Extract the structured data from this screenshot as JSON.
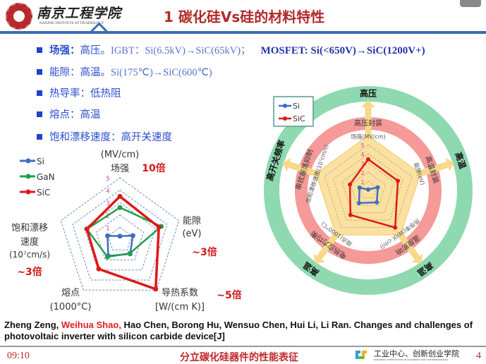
{
  "header": {
    "logo_text": "南京工程学院",
    "logo_subtitle": "NANJING INSTITUTE OF TECHNOLOGY",
    "title": "1 碳化硅Vs硅的材料特性"
  },
  "bullets": [
    {
      "key": "场强：",
      "text": "高压。",
      "detail": "IGBT：Si(6.5kV)→SiC(65kV)；",
      "extra": "MOSFET: Si(<650V)→SiC(1200V+)"
    },
    {
      "key": "能隙：",
      "text": "高温。",
      "detail": "Si(175℃)→SiC(600℃)",
      "extra": ""
    },
    {
      "key": "热导率：",
      "text": "低热阻",
      "detail": "",
      "extra": ""
    },
    {
      "key": "熔点：",
      "text": "高温",
      "detail": "",
      "extra": ""
    },
    {
      "key": "饱和漂移速度：",
      "text": "高开关速度",
      "detail": "",
      "extra": ""
    }
  ],
  "colors": {
    "Si": "#3d6fbf",
    "GaN": "#1fa04a",
    "SiC": "#e01818",
    "accent": "#b22a2a",
    "bullet": "#2a4fcf",
    "ring_green": "#8fd9b0",
    "ring_red": "#f59a98",
    "pentagon": "#fbe0a0"
  },
  "chart_data": [
    {
      "type": "radar",
      "axes": [
        {
          "name": "场强",
          "unit": "(MV/cm)",
          "note": "10倍"
        },
        {
          "name": "能隙",
          "unit": "(eV)",
          "note": "~3倍"
        },
        {
          "name": "导热系数",
          "unit": "[W/(cm K)]",
          "note": "~5倍"
        },
        {
          "name": "熔点",
          "unit": "(1000°C)",
          "note": ""
        },
        {
          "name": "饱和漂移速度",
          "unit": "(10⁷cm/s)",
          "note": "~3倍"
        }
      ],
      "axis_label_lines": {
        "sat": [
          "饱和漂移",
          "速度",
          "(10⁷cm/s)"
        ]
      },
      "ticks": [
        "1",
        "2",
        "3",
        "4",
        "5"
      ],
      "range": [
        0,
        5
      ],
      "legend": "top-left",
      "series": [
        {
          "name": "Si",
          "values": [
            0.3,
            1.1,
            1.4,
            1.6,
            1.05
          ]
        },
        {
          "name": "GaN",
          "values": [
            2.6,
            3.5,
            1.35,
            1.7,
            2.8
          ]
        },
        {
          "name": "SiC",
          "values": [
            3.5,
            3.3,
            4.9,
            2.9,
            2.8
          ]
        }
      ]
    },
    {
      "type": "radar",
      "axes": [
        "场强(MV/cm)",
        "能隙(eV)",
        "热导率(W/(K·cm))",
        "熔点(1000°C)",
        "饱和漂移速度(10⁷cm/s)"
      ],
      "ticks": [
        "1",
        "2",
        "3",
        "4",
        "5"
      ],
      "range": [
        0,
        5
      ],
      "legend": "top-left",
      "inner_ring_labels": [
        "高压封装",
        "高温封装",
        "温度影响",
        "电热应力均衡",
        "串扰振荡抑制"
      ],
      "outer_ring_labels": [
        "高压",
        "高温",
        "高温",
        "高温",
        "高开关频率"
      ],
      "series": [
        {
          "name": "Si",
          "values": [
            0.1,
            1.1,
            1.6,
            1.7,
            1.0
          ]
        },
        {
          "name": "SiC",
          "values": [
            3.4,
            3.4,
            5.0,
            3.3,
            2.1
          ]
        }
      ]
    }
  ],
  "citation": {
    "author1": "Zheng Zeng, ",
    "author_highlight": "Weihua Shao,",
    "rest": " Hao Chen, Borong Hu, Wensuo Chen, Hui Li, Li Ran. Changes and challenges of photovoltaic inverter with silicon carbide device[J]"
  },
  "footer": {
    "time": "09:10",
    "title": "分立碳化硅器件的性能表征",
    "org": "工业中心、创新创业学院",
    "org_sub": "Industrial center/School of innovation and entrepreneurship",
    "page": "4"
  }
}
